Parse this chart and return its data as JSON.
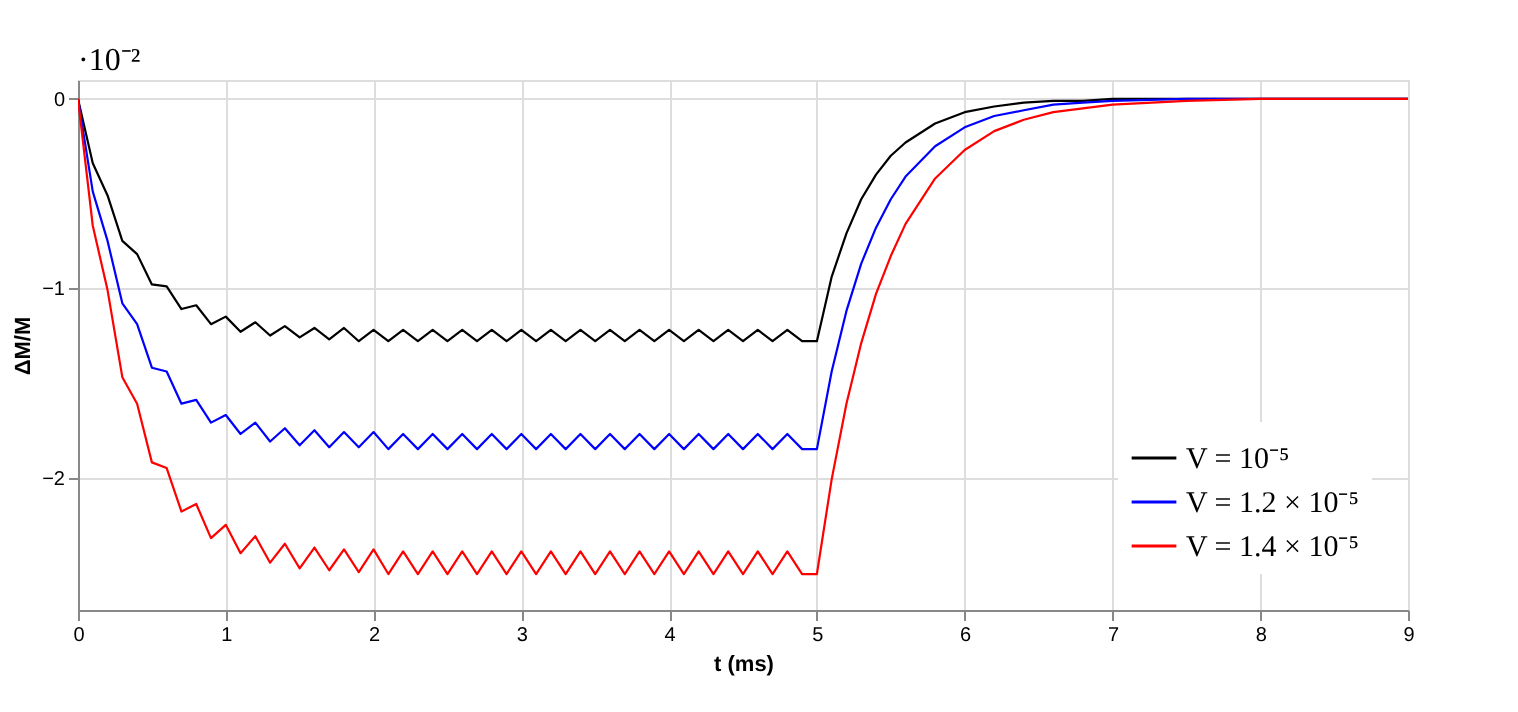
{
  "chart_data": {
    "type": "line",
    "xlabel": "t (ms)",
    "ylabel": "ΔM/M",
    "annotations": [
      "·10⁻²"
    ],
    "x": [
      0,
      0.1,
      0.2,
      0.3,
      0.4,
      0.5,
      0.6,
      0.7,
      0.8,
      0.9,
      1.0,
      1.1,
      1.2,
      1.3,
      1.4,
      1.5,
      1.6,
      1.7,
      1.8,
      1.9,
      2.0,
      2.1,
      2.2,
      2.3,
      2.4,
      2.5,
      2.6,
      2.7,
      2.8,
      2.9,
      3.0,
      3.1,
      3.2,
      3.3,
      3.4,
      3.5,
      3.6,
      3.7,
      3.8,
      3.9,
      4.0,
      4.1,
      4.2,
      4.3,
      4.4,
      4.5,
      4.6,
      4.7,
      4.8,
      4.9,
      5.0,
      5.1,
      5.2,
      5.3,
      5.4,
      5.5,
      5.6,
      5.8,
      6.0,
      6.2,
      6.4,
      6.6,
      6.8,
      7.0,
      7.5,
      8,
      9
    ],
    "series": [
      {
        "name": "V = 10⁻⁵",
        "color": "#000000",
        "values": [
          0,
          -0.34,
          -0.51,
          -0.75,
          -0.82,
          -0.98,
          -0.99,
          -1.11,
          -1.09,
          -1.19,
          -1.15,
          -1.23,
          -1.18,
          -1.25,
          -1.2,
          -1.26,
          -1.21,
          -1.27,
          -1.21,
          -1.28,
          -1.22,
          -1.28,
          -1.22,
          -1.28,
          -1.22,
          -1.28,
          -1.22,
          -1.28,
          -1.22,
          -1.28,
          -1.22,
          -1.28,
          -1.22,
          -1.28,
          -1.22,
          -1.28,
          -1.22,
          -1.28,
          -1.22,
          -1.28,
          -1.22,
          -1.28,
          -1.22,
          -1.28,
          -1.22,
          -1.28,
          -1.22,
          -1.28,
          -1.22,
          -1.28,
          -1.28,
          -0.94,
          -0.71,
          -0.53,
          -0.4,
          -0.3,
          -0.23,
          -0.13,
          -0.07,
          -0.04,
          -0.02,
          -0.01,
          -0.01,
          0,
          0,
          0,
          0
        ]
      },
      {
        "name": "V = 1.2 × 10⁻⁵",
        "color": "#0000ff",
        "values": [
          0,
          -0.49,
          -0.75,
          -1.08,
          -1.19,
          -1.42,
          -1.44,
          -1.61,
          -1.59,
          -1.71,
          -1.67,
          -1.77,
          -1.71,
          -1.81,
          -1.74,
          -1.83,
          -1.75,
          -1.84,
          -1.76,
          -1.84,
          -1.76,
          -1.85,
          -1.77,
          -1.85,
          -1.77,
          -1.85,
          -1.77,
          -1.85,
          -1.77,
          -1.85,
          -1.77,
          -1.85,
          -1.77,
          -1.85,
          -1.77,
          -1.85,
          -1.77,
          -1.85,
          -1.77,
          -1.85,
          -1.77,
          -1.85,
          -1.77,
          -1.85,
          -1.77,
          -1.85,
          -1.77,
          -1.85,
          -1.77,
          -1.85,
          -1.85,
          -1.44,
          -1.12,
          -0.87,
          -0.68,
          -0.53,
          -0.41,
          -0.25,
          -0.15,
          -0.09,
          -0.06,
          -0.03,
          -0.02,
          -0.01,
          0,
          0,
          0
        ]
      },
      {
        "name": "V = 1.4 × 10⁻⁵",
        "color": "#ff0000",
        "values": [
          0,
          -0.67,
          -1.01,
          -1.47,
          -1.61,
          -1.92,
          -1.95,
          -2.18,
          -2.14,
          -2.32,
          -2.25,
          -2.4,
          -2.31,
          -2.45,
          -2.35,
          -2.48,
          -2.37,
          -2.49,
          -2.38,
          -2.5,
          -2.38,
          -2.51,
          -2.39,
          -2.51,
          -2.39,
          -2.51,
          -2.39,
          -2.51,
          -2.39,
          -2.51,
          -2.39,
          -2.51,
          -2.39,
          -2.51,
          -2.39,
          -2.51,
          -2.39,
          -2.51,
          -2.39,
          -2.51,
          -2.39,
          -2.51,
          -2.39,
          -2.51,
          -2.39,
          -2.51,
          -2.39,
          -2.51,
          -2.39,
          -2.51,
          -2.51,
          -2.01,
          -1.61,
          -1.29,
          -1.03,
          -0.83,
          -0.66,
          -0.42,
          -0.27,
          -0.17,
          -0.11,
          -0.07,
          -0.05,
          -0.03,
          -0.01,
          0,
          0
        ]
      }
    ],
    "xlim": [
      0,
      9
    ],
    "xticks": [
      0,
      1,
      2,
      3,
      4,
      5,
      6,
      7,
      8,
      9
    ],
    "ylim": [
      -2.7,
      0.1
    ],
    "yticks": [
      -2,
      -1,
      0
    ],
    "grid": true,
    "legend": "bottom right"
  }
}
